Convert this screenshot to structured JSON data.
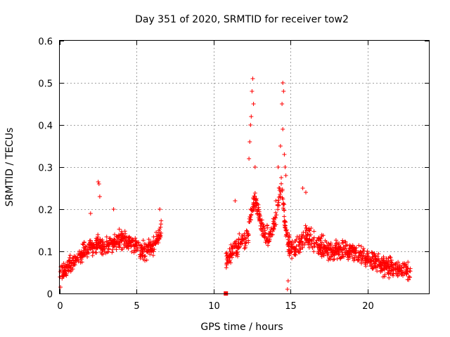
{
  "chart_data": {
    "type": "scatter",
    "title": "Day 351 of 2020, SRMTID for receiver tow2",
    "xlabel": "GPS time / hours",
    "ylabel": "SRMTID / TECUs",
    "xlim": [
      0,
      24
    ],
    "ylim": [
      0,
      0.6
    ],
    "xticks": [
      0,
      5,
      10,
      15,
      20
    ],
    "yticks": [
      0,
      0.1,
      0.2,
      0.3,
      0.4,
      0.5,
      0.6
    ],
    "xtick_labels": [
      "0",
      "5",
      "10",
      "15",
      "20"
    ],
    "ytick_labels": [
      "0",
      "0.1",
      "0.2",
      "0.3",
      "0.4",
      "0.5",
      "0.6"
    ],
    "grid": true,
    "marker": "+",
    "color": "#ff0000",
    "segments": [
      {
        "name": "early",
        "x_range": [
          0,
          6.6
        ],
        "profile": [
          [
            0,
            0.05
          ],
          [
            0.5,
            0.06
          ],
          [
            1.0,
            0.08
          ],
          [
            1.5,
            0.1
          ],
          [
            2.0,
            0.11
          ],
          [
            2.5,
            0.12
          ],
          [
            3.0,
            0.11
          ],
          [
            3.5,
            0.12
          ],
          [
            4.0,
            0.13
          ],
          [
            4.5,
            0.12
          ],
          [
            5.0,
            0.11
          ],
          [
            5.5,
            0.1
          ],
          [
            6.0,
            0.11
          ],
          [
            6.6,
            0.15
          ]
        ],
        "spread": 0.03
      },
      {
        "name": "late",
        "x_range": [
          10.8,
          22.8
        ],
        "profile": [
          [
            10.8,
            0.08
          ],
          [
            11.2,
            0.1
          ],
          [
            11.8,
            0.12
          ],
          [
            12.2,
            0.14
          ],
          [
            12.6,
            0.22
          ],
          [
            12.9,
            0.2
          ],
          [
            13.2,
            0.15
          ],
          [
            13.6,
            0.13
          ],
          [
            14.0,
            0.17
          ],
          [
            14.4,
            0.26
          ],
          [
            14.7,
            0.15
          ],
          [
            15.0,
            0.1
          ],
          [
            15.5,
            0.11
          ],
          [
            16.0,
            0.14
          ],
          [
            16.5,
            0.12
          ],
          [
            17.0,
            0.11
          ],
          [
            17.5,
            0.1
          ],
          [
            18.0,
            0.1
          ],
          [
            18.5,
            0.1
          ],
          [
            19.0,
            0.1
          ],
          [
            19.5,
            0.09
          ],
          [
            20.0,
            0.08
          ],
          [
            20.5,
            0.08
          ],
          [
            21.0,
            0.07
          ],
          [
            21.5,
            0.06
          ],
          [
            22.0,
            0.06
          ],
          [
            22.8,
            0.05
          ]
        ],
        "spread": 0.035
      }
    ],
    "highlight_points": [
      {
        "x": 12.55,
        "y": 0.51
      },
      {
        "x": 12.5,
        "y": 0.48
      },
      {
        "x": 12.45,
        "y": 0.42
      },
      {
        "x": 12.4,
        "y": 0.4
      },
      {
        "x": 12.35,
        "y": 0.36
      },
      {
        "x": 12.6,
        "y": 0.45
      },
      {
        "x": 12.3,
        "y": 0.32
      },
      {
        "x": 12.7,
        "y": 0.3
      },
      {
        "x": 14.5,
        "y": 0.5
      },
      {
        "x": 14.55,
        "y": 0.48
      },
      {
        "x": 14.45,
        "y": 0.45
      },
      {
        "x": 14.5,
        "y": 0.39
      },
      {
        "x": 14.35,
        "y": 0.35
      },
      {
        "x": 14.6,
        "y": 0.33
      },
      {
        "x": 14.65,
        "y": 0.3
      },
      {
        "x": 14.2,
        "y": 0.3
      },
      {
        "x": 14.7,
        "y": 0.28
      },
      {
        "x": 14.05,
        "y": 0.22
      },
      {
        "x": 2.5,
        "y": 0.265
      },
      {
        "x": 2.55,
        "y": 0.26
      },
      {
        "x": 2.6,
        "y": 0.23
      },
      {
        "x": 2.0,
        "y": 0.19
      },
      {
        "x": 6.5,
        "y": 0.2
      },
      {
        "x": 3.5,
        "y": 0.2
      },
      {
        "x": 11.4,
        "y": 0.22
      },
      {
        "x": 15.8,
        "y": 0.25
      },
      {
        "x": 16.0,
        "y": 0.24
      },
      {
        "x": 14.8,
        "y": 0.01
      },
      {
        "x": 14.85,
        "y": 0.03
      },
      {
        "x": 0.05,
        "y": 0.015
      },
      {
        "x": 10.8,
        "y": 0.0
      }
    ]
  }
}
